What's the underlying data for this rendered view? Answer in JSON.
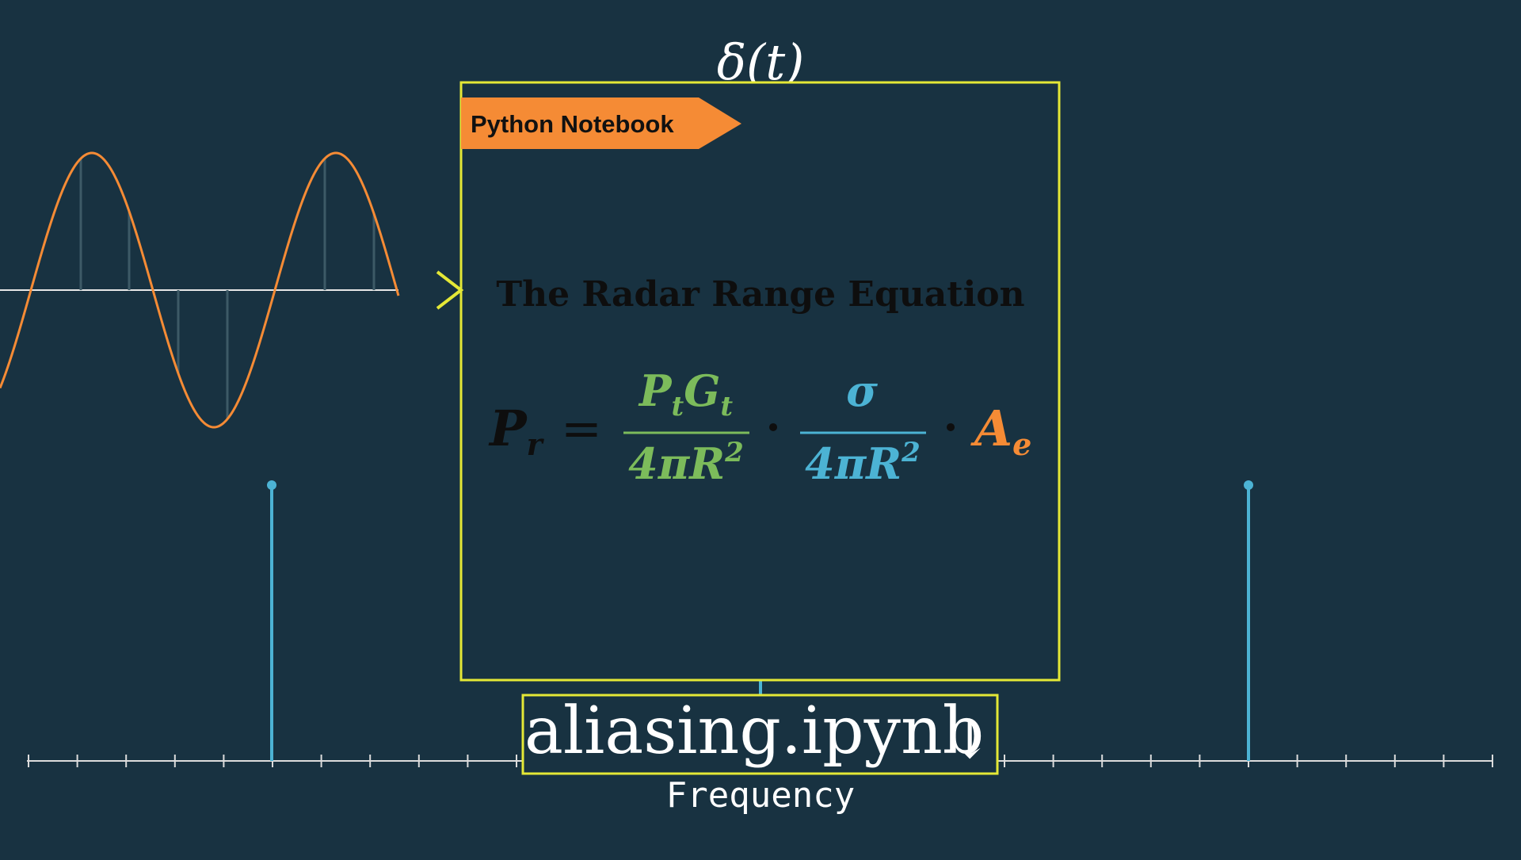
{
  "delta_label": "δ(t)",
  "notebook_tag": "Python Notebook",
  "card_title": "The Radar Range Equation",
  "equation": {
    "lhs": "P",
    "lhs_sub": "r",
    "equals": "=",
    "frac1_num_a": "P",
    "frac1_num_a_sub": "t",
    "frac1_num_b": "G",
    "frac1_num_b_sub": "t",
    "frac1_den": "4πR",
    "frac1_den_sup": "2",
    "dot": "·",
    "frac2_num": "σ",
    "frac2_den": "4πR",
    "frac2_den_sup": "2",
    "rhs": "A",
    "rhs_sub": "e"
  },
  "filename": "aliasing.ipynb",
  "link_glyph": "↓",
  "axis_label": "Frequency",
  "colors": {
    "background": "#183241",
    "highlight": "#e4e836",
    "orange": "#f58b35",
    "green": "#7cbb5b",
    "blue": "#4cb3d4",
    "white": "#ffffff",
    "axis": "#dcdcdc"
  }
}
